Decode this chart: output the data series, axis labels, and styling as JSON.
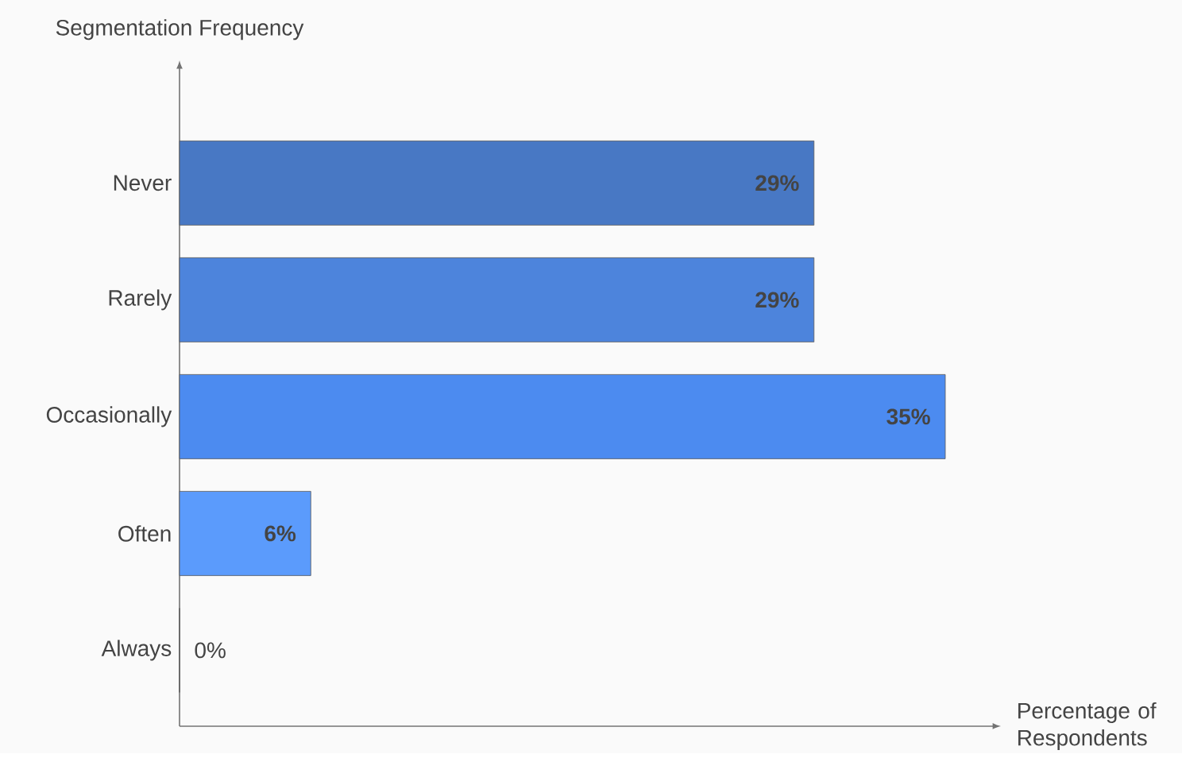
{
  "chart_data": {
    "type": "bar",
    "orientation": "horizontal",
    "xlabel": "Percentage of Respondents",
    "ylabel": "Segmentation Frequency",
    "categories": [
      "Never",
      "Rarely",
      "Occasionally",
      "Often",
      "Always"
    ],
    "values": [
      29,
      29,
      35,
      6,
      0
    ],
    "colors": [
      "#4878c4",
      "#4d84dc",
      "#4c8bf0",
      "#5b9bfc",
      "#6aa6ff"
    ],
    "value_labels": [
      "29%",
      "29%",
      "35%",
      "6%",
      "0%"
    ]
  }
}
